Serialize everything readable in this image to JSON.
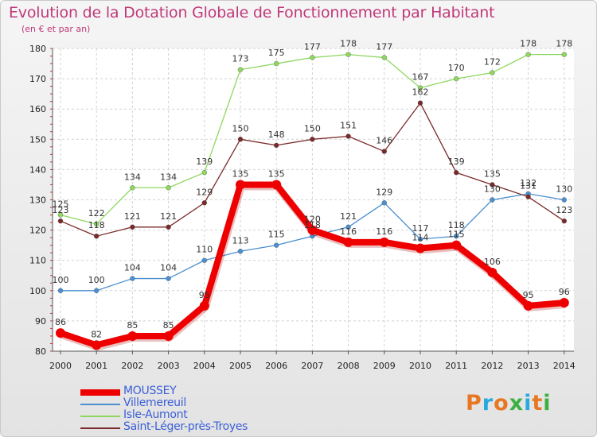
{
  "title": "Evolution de la Dotation Globale de Fonctionnement par Habitant",
  "subtitle": "(en € et par an)",
  "logo": {
    "text": "Proxiti",
    "colors": [
      "#e87722",
      "#2aa9e0",
      "#e87722",
      "#3cb043",
      "#2aa9e0",
      "#e87722",
      "#3cb043"
    ]
  },
  "chart_data": {
    "type": "line",
    "title": "Evolution de la Dotation Globale de Fonctionnement par Habitant",
    "subtitle": "(en € et par an)",
    "xlabel": "",
    "ylabel": "",
    "x": [
      "2000",
      "2001",
      "2002",
      "2003",
      "2004",
      "2005",
      "2006",
      "2007",
      "2008",
      "2009",
      "2010",
      "2011",
      "2012",
      "2013",
      "2014"
    ],
    "ylim": [
      80,
      180
    ],
    "yticks": [
      "80",
      "90",
      "100",
      "110",
      "120",
      "130",
      "140",
      "150",
      "160",
      "170",
      "180"
    ],
    "grid": true,
    "legend_position": "bottom-left",
    "series": [
      {
        "name": "MOUSSEY",
        "color": "#ee0000",
        "emphasis": true,
        "values": [
          86,
          82,
          85,
          85,
          95,
          135,
          135,
          120,
          116,
          116,
          114,
          115,
          106,
          95,
          96
        ],
        "labels": [
          "86",
          "82",
          "85",
          "85",
          "95",
          "135",
          "135",
          "120",
          "116",
          "116",
          "114",
          "115",
          "106",
          "95",
          "96"
        ]
      },
      {
        "name": "Villemereuil",
        "color": "#4a8fd0",
        "emphasis": false,
        "values": [
          100,
          100,
          104,
          104,
          110,
          113,
          115,
          118,
          121,
          129,
          117,
          118,
          130,
          132,
          130
        ],
        "labels": [
          "100",
          "100",
          "104",
          "104",
          "110",
          "113",
          "115",
          "118",
          "121",
          "129",
          "117",
          "118",
          "130",
          "132",
          "130"
        ]
      },
      {
        "name": "Isle-Aumont",
        "color": "#8ed860",
        "emphasis": false,
        "values": [
          125,
          122,
          134,
          134,
          139,
          173,
          175,
          177,
          178,
          177,
          167,
          170,
          172,
          178,
          178
        ],
        "labels": [
          "125",
          "122",
          "134",
          "134",
          "139",
          "173",
          "175",
          "177",
          "178",
          "177",
          "167",
          "170",
          "172",
          "178",
          "178"
        ]
      },
      {
        "name": "Saint-Léger-près-Troyes",
        "color": "#7a2a2a",
        "emphasis": false,
        "values": [
          123,
          118,
          121,
          121,
          129,
          150,
          148,
          150,
          151,
          146,
          162,
          139,
          135,
          131,
          123
        ],
        "labels": [
          "123",
          "118",
          "121",
          "121",
          "129",
          "150",
          "148",
          "150",
          "151",
          "146",
          "162",
          "139",
          "135",
          "131",
          "123"
        ]
      }
    ]
  }
}
